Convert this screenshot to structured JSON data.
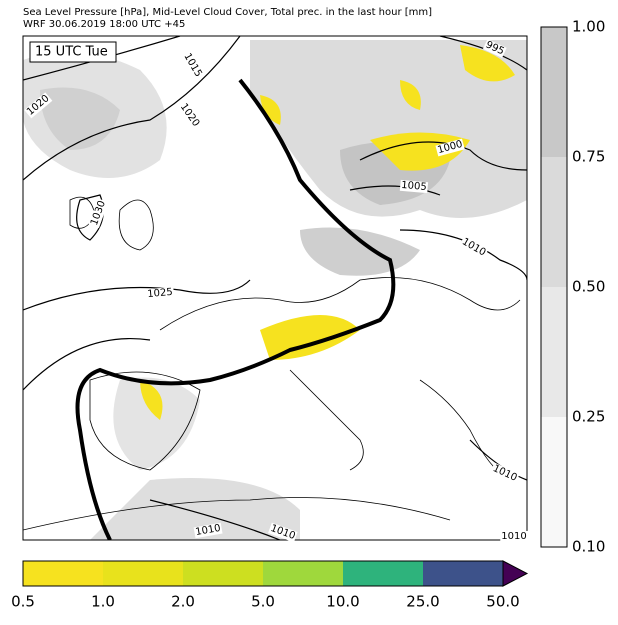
{
  "header": {
    "line1": "Sea Level Pressure [hPa], Mid-Level Cloud Cover, Total prec. in the last hour [mm]",
    "line2": "WRF 30.06.2019 18:00 UTC +45"
  },
  "map": {
    "time_label": "15 UTC Tue",
    "isobar_labels": [
      "1020",
      "1015",
      "1020",
      "1030",
      "1025",
      "995",
      "1000",
      "1005",
      "1010",
      "1010",
      "1010",
      "1010",
      "1010"
    ]
  },
  "cloud_colorbar": {
    "labels": [
      "1.00",
      "0.75",
      "0.50",
      "0.25",
      "0.10"
    ],
    "colors": [
      "#c8c8c8",
      "#dadada",
      "#e8e8e8",
      "#f8f8f8"
    ]
  },
  "precip_colorbar": {
    "labels": [
      "0.5",
      "1.0",
      "2.0",
      "5.0",
      "10.0",
      "25.0",
      "50.0"
    ],
    "colors": [
      "#f6e21f",
      "#e8e21c",
      "#cddf20",
      "#9fd83c",
      "#2eb37c",
      "#3d528a"
    ],
    "extend_color": "#440154"
  }
}
